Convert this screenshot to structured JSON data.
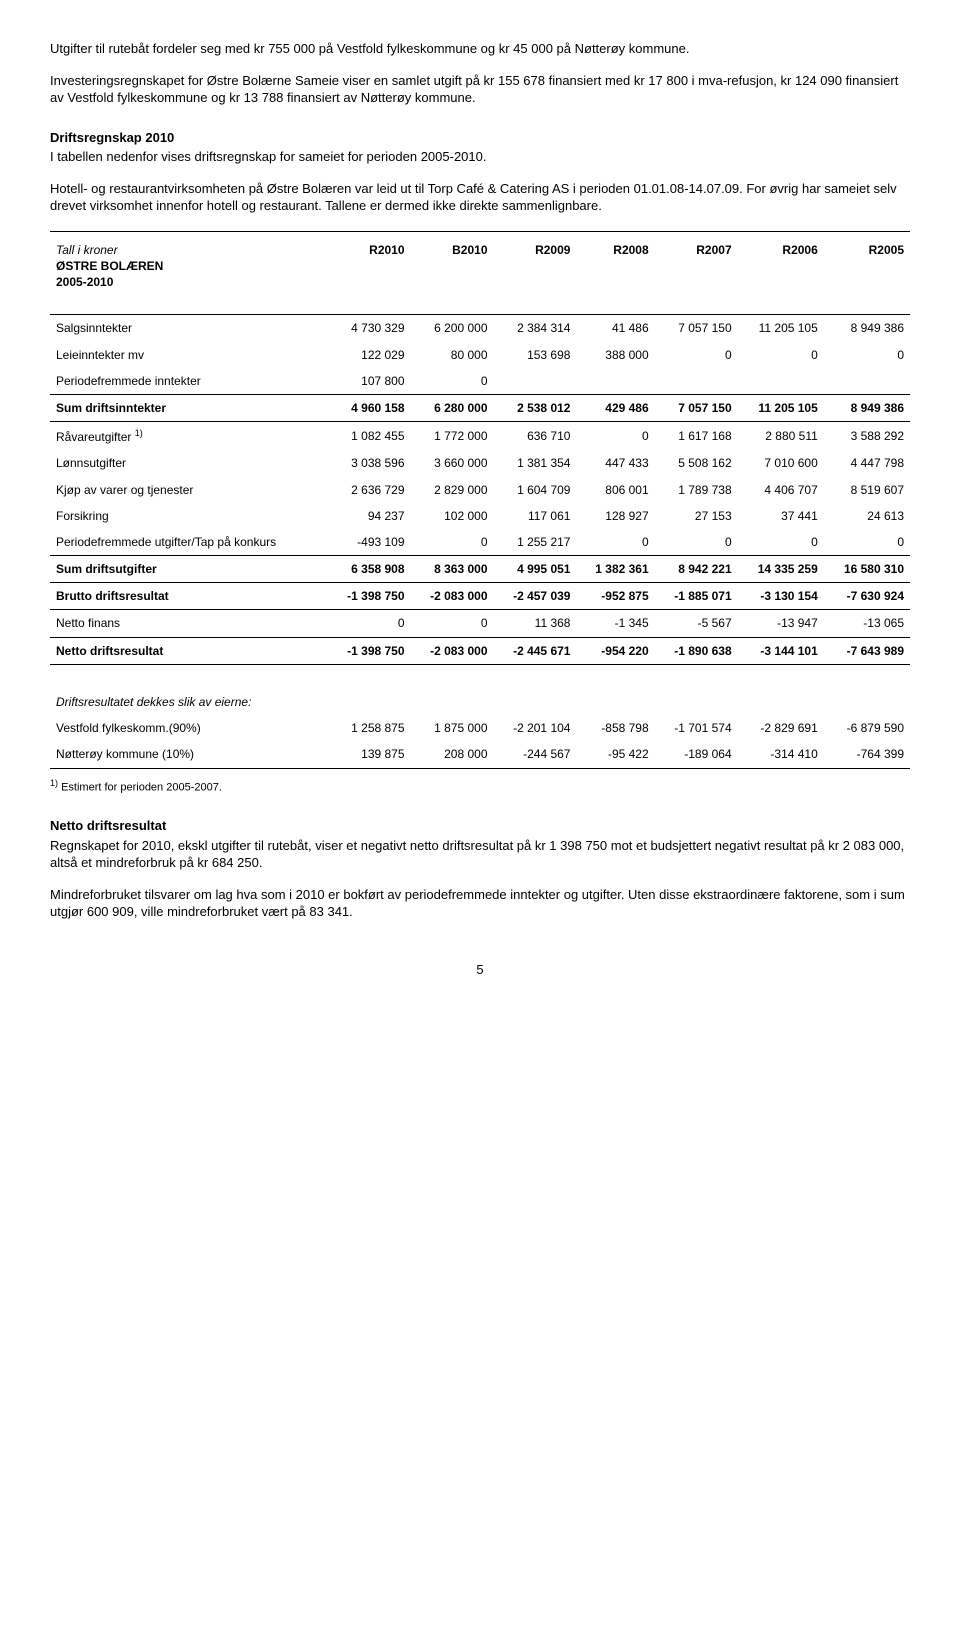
{
  "para1": "Utgifter til rutebåt fordeler seg med kr 755 000 på Vestfold fylkeskommune og kr 45 000 på Nøtterøy kommune.",
  "para2": "Investeringsregnskapet for Østre Bolærne Sameie viser en samlet utgift på kr 155 678 finansiert med kr 17 800 i mva-refusjon, kr 124 090 finansiert av Vestfold fylkeskommune og kr 13 788 finansiert av Nøtterøy kommune.",
  "sec1_title": "Driftsregnskap 2010",
  "sec1_p1": "I tabellen nedenfor vises driftsregnskap for sameiet for perioden 2005-2010.",
  "sec1_p2": "Hotell- og restaurantvirksomheten på Østre Bolæren var leid ut til Torp Café & Catering AS i perioden 01.01.08-14.07.09. For øvrig har sameiet selv drevet virksomhet innenfor hotell og restaurant. Tallene er dermed ikke direkte sammenlignbare.",
  "table": {
    "header_italic": "Tall i kroner",
    "header_main": "ØSTRE BOLÆREN",
    "header_sub": "2005-2010",
    "cols": [
      "R2010",
      "B2010",
      "R2009",
      "R2008",
      "R2007",
      "R2006",
      "R2005"
    ],
    "rows": [
      {
        "label": "Salgsinntekter",
        "vals": [
          "4 730 329",
          "6 200 000",
          "2 384 314",
          "41 486",
          "7 057 150",
          "11 205 105",
          "8 949 386"
        ]
      },
      {
        "label": "Leieinntekter mv",
        "vals": [
          "122 029",
          "80 000",
          "153 698",
          "388 000",
          "0",
          "0",
          "0"
        ]
      },
      {
        "label": "Periodefremmede inntekter",
        "vals": [
          "107 800",
          "0",
          "",
          "",
          "",
          "",
          ""
        ]
      }
    ],
    "sum1": {
      "label": "Sum driftsinntekter",
      "vals": [
        "4 960 158",
        "6 280 000",
        "2 538 012",
        "429 486",
        "7 057 150",
        "11 205 105",
        "8 949 386"
      ]
    },
    "rows2": [
      {
        "label": "Råvareutgifter ",
        "sup": "1)",
        "vals": [
          "1 082 455",
          "1 772 000",
          "636 710",
          "0",
          "1 617 168",
          "2 880 511",
          "3 588 292"
        ]
      },
      {
        "label": "Lønnsutgifter",
        "vals": [
          "3 038 596",
          "3 660 000",
          "1 381 354",
          "447 433",
          "5 508 162",
          "7 010 600",
          "4 447 798"
        ]
      },
      {
        "label": "Kjøp av varer og tjenester",
        "vals": [
          "2 636 729",
          "2 829 000",
          "1 604 709",
          "806 001",
          "1 789 738",
          "4 406 707",
          "8 519 607"
        ]
      },
      {
        "label": "Forsikring",
        "vals": [
          "94 237",
          "102 000",
          "117 061",
          "128 927",
          "27 153",
          "37 441",
          "24 613"
        ]
      },
      {
        "label": "Periodefremmede utgifter/Tap på konkurs",
        "vals": [
          "-493 109",
          "0",
          "1 255 217",
          "0",
          "0",
          "0",
          "0"
        ]
      }
    ],
    "sum2": {
      "label": "Sum driftsutgifter",
      "vals": [
        "6 358 908",
        "8 363 000",
        "4 995 051",
        "1 382 361",
        "8 942 221",
        "14 335 259",
        "16 580 310"
      ]
    },
    "brutto": {
      "label": "Brutto driftsresultat",
      "vals": [
        "-1 398 750",
        "-2 083 000",
        "-2 457 039",
        "-952 875",
        "-1 885 071",
        "-3 130 154",
        "-7 630 924"
      ]
    },
    "nettofinans": {
      "label": "Netto finans",
      "vals": [
        "0",
        "0",
        "11 368",
        "-1 345",
        "-5 567",
        "-13 947",
        "-13 065"
      ]
    },
    "nettodrift": {
      "label": "Netto driftsresultat",
      "vals": [
        "-1 398 750",
        "-2 083 000",
        "-2 445 671",
        "-954 220",
        "-1 890 638",
        "-3 144 101",
        "-7 643 989"
      ]
    },
    "dekkes_label": "Driftsresultatet dekkes slik av eierne:",
    "owners": [
      {
        "label": "Vestfold fylkeskomm.(90%)",
        "vals": [
          "1 258 875",
          "1 875 000",
          "-2 201 104",
          "-858 798",
          "-1 701 574",
          "-2 829 691",
          "-6 879 590"
        ]
      },
      {
        "label": "Nøtterøy kommune (10%)",
        "vals": [
          "139 875",
          "208 000",
          "-244 567",
          "-95 422",
          "-189 064",
          "-314 410",
          "-764 399"
        ]
      }
    ]
  },
  "footnote": " Estimert for perioden 2005-2007.",
  "footnote_sup": "1)",
  "sec2_title": "Netto driftsresultat",
  "sec2_p1": "Regnskapet for 2010, ekskl utgifter til rutebåt, viser et negativt netto driftsresultat på kr 1 398 750 mot et budsjettert negativt resultat på kr 2 083 000, altså et mindreforbruk på kr 684 250.",
  "sec2_p2": "Mindreforbruket tilsvarer om lag hva som i 2010 er bokført av periodefremmede inntekter og utgifter. Uten disse ekstraordinære faktorene, som i sum utgjør 600 909, ville mindreforbruket vært på 83 341.",
  "page_num": "5"
}
